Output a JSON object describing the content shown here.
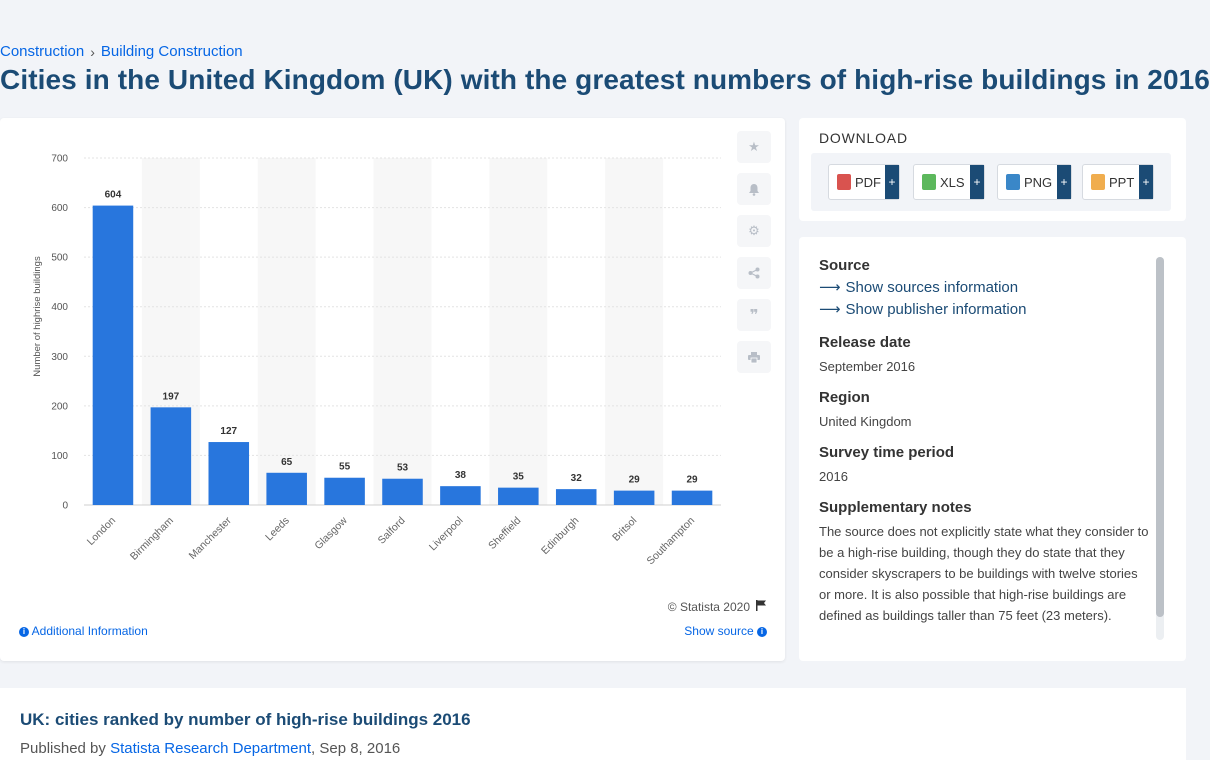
{
  "breadcrumb": {
    "item1": "Construction",
    "separator": "›",
    "item2": "Building Construction"
  },
  "page_title": "Cities in the United Kingdom (UK) with the greatest numbers of high-rise buildings in 2016",
  "chart_card": {
    "copyright": "© Statista 2020",
    "additional_info": "Additional Information",
    "show_source": "Show source",
    "tools": [
      "star-icon",
      "bell-icon",
      "gear-icon",
      "share-icon",
      "quote-icon",
      "print-icon"
    ]
  },
  "chart_data": {
    "type": "bar",
    "categories": [
      "London",
      "Birmingham",
      "Manchester",
      "Leeds",
      "Glasgow",
      "Salford",
      "Liverpool",
      "Sheffield",
      "Edinburgh",
      "Britsol",
      "Southampton"
    ],
    "values": [
      604,
      197,
      127,
      65,
      55,
      53,
      38,
      35,
      32,
      29,
      29
    ],
    "ylabel": "Number of highrise buildings",
    "xlabel": "",
    "ylim": [
      0,
      700
    ],
    "yticks": [
      0,
      100,
      200,
      300,
      400,
      500,
      600,
      700
    ],
    "grid": true,
    "data_labels": true,
    "bar_color": "#2876dd"
  },
  "download": {
    "title": "DOWNLOAD",
    "buttons": [
      {
        "label": "PDF",
        "icon": "pdf-icon",
        "color": "#d9534f"
      },
      {
        "label": "XLS",
        "icon": "xls-icon",
        "color": "#5cb85c"
      },
      {
        "label": "PNG",
        "icon": "png-icon",
        "color": "#3a87c8"
      },
      {
        "label": "PPT",
        "icon": "ppt-icon",
        "color": "#f0ad4e"
      }
    ],
    "plus": "+"
  },
  "info": {
    "source_label": "Source",
    "show_sources": "Show sources information",
    "show_publisher": "Show publisher information",
    "release_label": "Release date",
    "release_value": "September 2016",
    "region_label": "Region",
    "region_value": "United Kingdom",
    "survey_label": "Survey time period",
    "survey_value": "2016",
    "notes_label": "Supplementary notes",
    "notes_value": "The source does not explicitly state what they consider to be a high-rise building, though they do state that they consider skyscrapers to be buildings with twelve stories or more. It is also possible that high-rise buildings are defined as buildings taller than 75 feet (23 meters)."
  },
  "bottom": {
    "title": "UK: cities ranked by number of high-rise buildings 2016",
    "published_by": "Published by",
    "publisher": "Statista Research Department",
    "date": ", Sep 8, 2016"
  },
  "colors": {
    "accent": "#0666e5",
    "title": "#1b4b75",
    "bar": "#2876dd"
  }
}
